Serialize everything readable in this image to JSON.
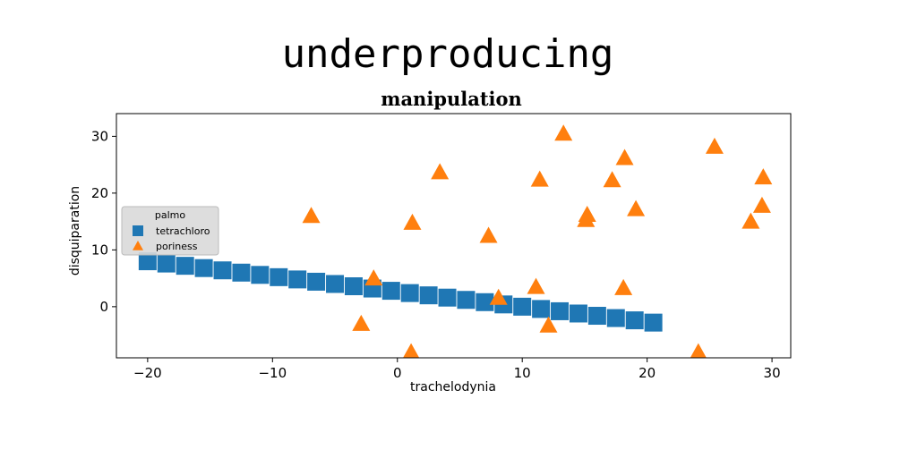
{
  "suptitle": "underproducing",
  "chart_data": {
    "type": "scatter",
    "title": "manipulation",
    "xlabel": "trachelodynia",
    "ylabel": "disquiparation",
    "xlim": [
      -22.5,
      31.5
    ],
    "ylim": [
      -9,
      34
    ],
    "xticks": [
      -20,
      -10,
      0,
      10,
      20,
      30
    ],
    "yticks": [
      0,
      10,
      20,
      30
    ],
    "xtick_labels": [
      "−20",
      "−10",
      "0",
      "10",
      "20",
      "30"
    ],
    "ytick_labels": [
      "0",
      "10",
      "20",
      "30"
    ],
    "grid": false,
    "legend": {
      "title": "palmo",
      "position": "center-left"
    },
    "series": [
      {
        "name": "tetrachloro",
        "marker": "square",
        "color": "#1f77b4",
        "x": [
          -20.0,
          -18.5,
          -17.0,
          -15.5,
          -14.0,
          -12.5,
          -11.0,
          -9.5,
          -8.0,
          -6.5,
          -5.0,
          -3.5,
          -2.0,
          -0.5,
          1.0,
          2.5,
          4.0,
          5.5,
          7.0,
          8.5,
          10.0,
          11.5,
          13.0,
          14.5,
          16.0,
          17.5,
          19.0,
          20.5
        ],
        "y": [
          8.0,
          7.6,
          7.2,
          6.8,
          6.4,
          6.0,
          5.6,
          5.2,
          4.8,
          4.4,
          4.0,
          3.6,
          3.2,
          2.8,
          2.4,
          2.0,
          1.6,
          1.2,
          0.8,
          0.4,
          0.0,
          -0.4,
          -0.8,
          -1.2,
          -1.6,
          -2.0,
          -2.4,
          -2.8
        ]
      },
      {
        "name": "poriness",
        "marker": "triangle",
        "color": "#ff7f0e",
        "x": [
          -6.9,
          -2.9,
          -1.9,
          1.1,
          1.2,
          3.4,
          7.3,
          8.1,
          11.1,
          11.4,
          12.1,
          13.3,
          15.1,
          15.2,
          17.2,
          18.2,
          18.1,
          19.1,
          24.1,
          25.4,
          28.3,
          29.2,
          29.3
        ],
        "y": [
          16.0,
          -3.0,
          5.0,
          -8.0,
          14.8,
          23.7,
          12.5,
          1.6,
          3.5,
          22.4,
          -3.3,
          30.5,
          15.3,
          16.2,
          22.3,
          26.2,
          3.3,
          17.2,
          -8.0,
          28.2,
          15.0,
          17.8,
          22.8
        ]
      }
    ]
  }
}
